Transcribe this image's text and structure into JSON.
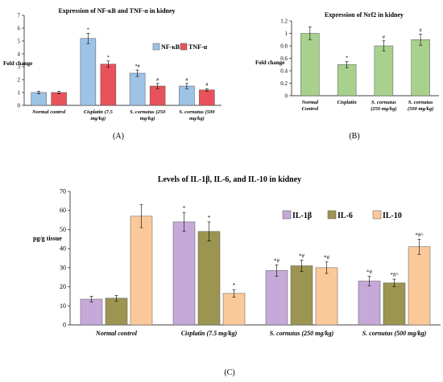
{
  "chart_data": [
    {
      "type": "bar",
      "panel": "(A)",
      "title": "Expression of NF-κB and TNF-α in kidney",
      "ylabel": "Fold change",
      "ylim": [
        0,
        7
      ],
      "yticks": [
        0,
        1,
        2,
        3,
        4,
        5,
        6,
        7
      ],
      "categories": [
        [
          "Normal control"
        ],
        [
          "Cisplatin (7.5",
          "mg/kg)"
        ],
        [
          "S. cornutus (250",
          "mg/kg)"
        ],
        [
          "S. cornutus (500",
          "mg/kg)"
        ]
      ],
      "legend_position": "top-right",
      "series": [
        {
          "name": "NF-κB",
          "color": "#9dc3e6",
          "values": [
            1.0,
            5.2,
            2.5,
            1.5
          ],
          "errors": [
            0.1,
            0.4,
            0.25,
            0.2
          ],
          "labels": [
            "",
            "*",
            "*#",
            "#"
          ]
        },
        {
          "name": "TNF-α",
          "color": "#e8535b",
          "values": [
            1.0,
            3.2,
            1.5,
            1.2
          ],
          "errors": [
            0.1,
            0.25,
            0.2,
            0.1
          ],
          "labels": [
            "",
            "*",
            "#",
            "#"
          ]
        }
      ]
    },
    {
      "type": "bar",
      "panel": "(B)",
      "title": "Expression of Nrf2 in kidney",
      "ylabel": "Fold change",
      "ylim": [
        0,
        1.2
      ],
      "yticks": [
        "0",
        "0.2",
        "0.4",
        "0.6",
        "0.8",
        "1",
        "1.2"
      ],
      "categories": [
        [
          "Normal",
          "Control"
        ],
        [
          "Cisplatin"
        ],
        [
          "S. cornutus",
          "(250 mg/kg)"
        ],
        [
          "S. cornutus",
          "(500 mg/kg)"
        ]
      ],
      "series": [
        {
          "name": "Nrf2",
          "color": "#a9d18e",
          "values": [
            1.0,
            0.5,
            0.8,
            0.9
          ],
          "errors": [
            0.1,
            0.05,
            0.08,
            0.09
          ],
          "labels": [
            "",
            "*",
            "#",
            "#"
          ]
        }
      ]
    },
    {
      "type": "bar",
      "panel": "(C)",
      "title": "Levels of IL-1β, IL-6, and IL-10 in kidney",
      "ylabel": "pg/g tissue",
      "ylim": [
        0,
        70
      ],
      "yticks": [
        0,
        10,
        20,
        30,
        40,
        50,
        60,
        70
      ],
      "categories": [
        [
          "Normal control"
        ],
        [
          "Cisplatin (7.5 mg/kg)"
        ],
        [
          "S. cornutus (250 mg/kg)"
        ],
        [
          "S. cornutus (500 mg/kg)"
        ]
      ],
      "legend_position": "top-right",
      "series": [
        {
          "name": "IL-1β",
          "color": "#c6a9d8",
          "values": [
            13.5,
            54,
            28.5,
            23
          ],
          "errors": [
            1.5,
            5,
            3,
            2.5
          ],
          "labels": [
            "",
            "*",
            "*#",
            "*#"
          ]
        },
        {
          "name": "IL-6",
          "color": "#9c9552",
          "values": [
            14,
            49,
            31,
            22
          ],
          "errors": [
            1.5,
            5,
            3,
            2
          ],
          "labels": [
            "",
            "*",
            "*#",
            "*#^"
          ]
        },
        {
          "name": "IL-10",
          "color": "#fbc999",
          "values": [
            57,
            16.5,
            30,
            41
          ],
          "errors": [
            6,
            2,
            3,
            4
          ],
          "labels": [
            "",
            "*",
            "*#",
            "*#^"
          ]
        }
      ]
    }
  ]
}
